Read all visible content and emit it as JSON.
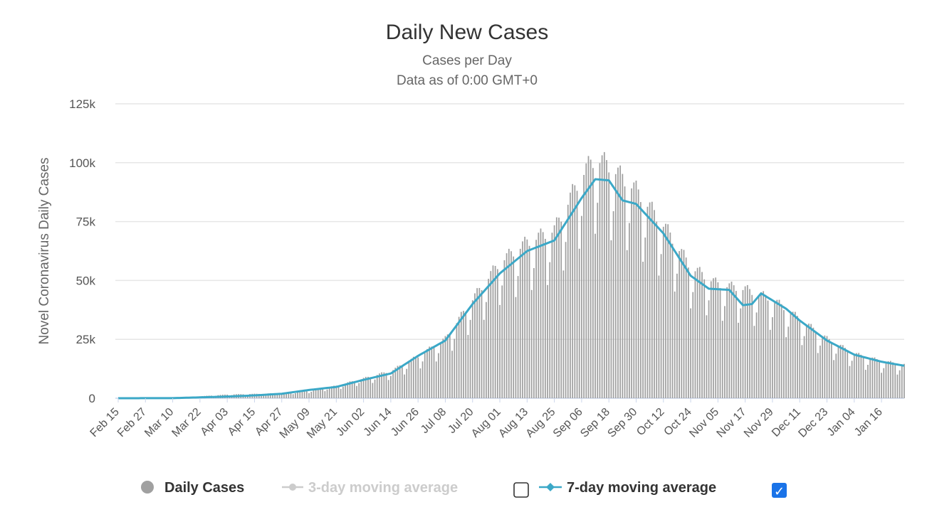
{
  "chart_data": {
    "type": "bar",
    "title": "Daily New Cases",
    "subtitle_lines": [
      "Cases per Day",
      "Data as of 0:00 GMT+0"
    ],
    "ylabel": "Novel Coronavirus Daily Cases",
    "xlabel": "",
    "ylim": [
      0,
      125000
    ],
    "yticks": [
      0,
      25000,
      50000,
      75000,
      100000,
      125000
    ],
    "ytick_labels": [
      "0",
      "25k",
      "50k",
      "75k",
      "100k",
      "125k"
    ],
    "grid": true,
    "start_date": "2020-02-15",
    "end_date": "2021-01-26",
    "x_tick_labels": [
      "Feb 15",
      "Feb 27",
      "Mar 10",
      "Mar 22",
      "Apr 03",
      "Apr 15",
      "Apr 27",
      "May 09",
      "May 21",
      "Jun 02",
      "Jun 14",
      "Jun 26",
      "Jul 08",
      "Jul 20",
      "Aug 01",
      "Aug 13",
      "Aug 25",
      "Sep 06",
      "Sep 18",
      "Sep 30",
      "Oct 12",
      "Oct 24",
      "Nov 05",
      "Nov 17",
      "Nov 29",
      "Dec 11",
      "Dec 23",
      "Jan 04",
      "Jan 16"
    ],
    "legend_placement": "bottom",
    "series": [
      {
        "name": "Daily Cases",
        "type": "bar",
        "color": "#a0a0a0",
        "visible": true,
        "anchor_points": [
          [
            "2020-02-15",
            0
          ],
          [
            "2020-03-10",
            50
          ],
          [
            "2020-04-03",
            1500
          ],
          [
            "2020-04-27",
            2000
          ],
          [
            "2020-05-09",
            3000
          ],
          [
            "2020-05-21",
            5000
          ],
          [
            "2020-06-02",
            8000
          ],
          [
            "2020-06-14",
            11000
          ],
          [
            "2020-06-26",
            17000
          ],
          [
            "2020-07-08",
            24000
          ],
          [
            "2020-07-20",
            40000
          ],
          [
            "2020-08-01",
            55000
          ],
          [
            "2020-08-13",
            63000
          ],
          [
            "2020-08-25",
            68000
          ],
          [
            "2020-09-06",
            90000
          ],
          [
            "2020-09-12",
            97000
          ],
          [
            "2020-09-18",
            94000
          ],
          [
            "2020-09-30",
            84000
          ],
          [
            "2020-10-12",
            70000
          ],
          [
            "2020-10-24",
            53000
          ],
          [
            "2020-11-05",
            46000
          ],
          [
            "2020-11-17",
            44000
          ],
          [
            "2020-11-29",
            40000
          ],
          [
            "2020-12-11",
            32000
          ],
          [
            "2020-12-23",
            24000
          ],
          [
            "2021-01-04",
            18000
          ],
          [
            "2021-01-16",
            15000
          ],
          [
            "2021-01-26",
            13500
          ]
        ]
      },
      {
        "name": "3-day moving average",
        "type": "line",
        "color": "#cccccc",
        "visible": false
      },
      {
        "name": "7-day moving average",
        "type": "line",
        "color": "#3ba8c7",
        "visible": true,
        "anchor_points": [
          [
            "2020-02-15",
            0
          ],
          [
            "2020-03-10",
            50
          ],
          [
            "2020-04-03",
            700
          ],
          [
            "2020-04-15",
            1200
          ],
          [
            "2020-04-27",
            1900
          ],
          [
            "2020-05-09",
            3500
          ],
          [
            "2020-05-21",
            4800
          ],
          [
            "2020-06-02",
            7800
          ],
          [
            "2020-06-14",
            10500
          ],
          [
            "2020-06-26",
            18000
          ],
          [
            "2020-07-08",
            24500
          ],
          [
            "2020-07-20",
            40000
          ],
          [
            "2020-08-01",
            53000
          ],
          [
            "2020-08-13",
            62500
          ],
          [
            "2020-08-25",
            67000
          ],
          [
            "2020-09-06",
            85000
          ],
          [
            "2020-09-12",
            93000
          ],
          [
            "2020-09-18",
            92500
          ],
          [
            "2020-09-24",
            84000
          ],
          [
            "2020-09-30",
            82500
          ],
          [
            "2020-10-12",
            70000
          ],
          [
            "2020-10-24",
            52000
          ],
          [
            "2020-11-01",
            46500
          ],
          [
            "2020-11-10",
            46000
          ],
          [
            "2020-11-16",
            39500
          ],
          [
            "2020-11-20",
            40000
          ],
          [
            "2020-11-24",
            44500
          ],
          [
            "2020-12-05",
            38000
          ],
          [
            "2020-12-11",
            33000
          ],
          [
            "2020-12-23",
            24500
          ],
          [
            "2021-01-04",
            18500
          ],
          [
            "2021-01-16",
            15500
          ],
          [
            "2021-01-26",
            13800
          ]
        ]
      }
    ]
  },
  "legend": {
    "daily_cases": "Daily Cases",
    "three_day": "3-day moving average",
    "seven_day": "7-day moving average",
    "three_day_checked": false,
    "seven_day_checked": true,
    "checkmark": "✓"
  }
}
